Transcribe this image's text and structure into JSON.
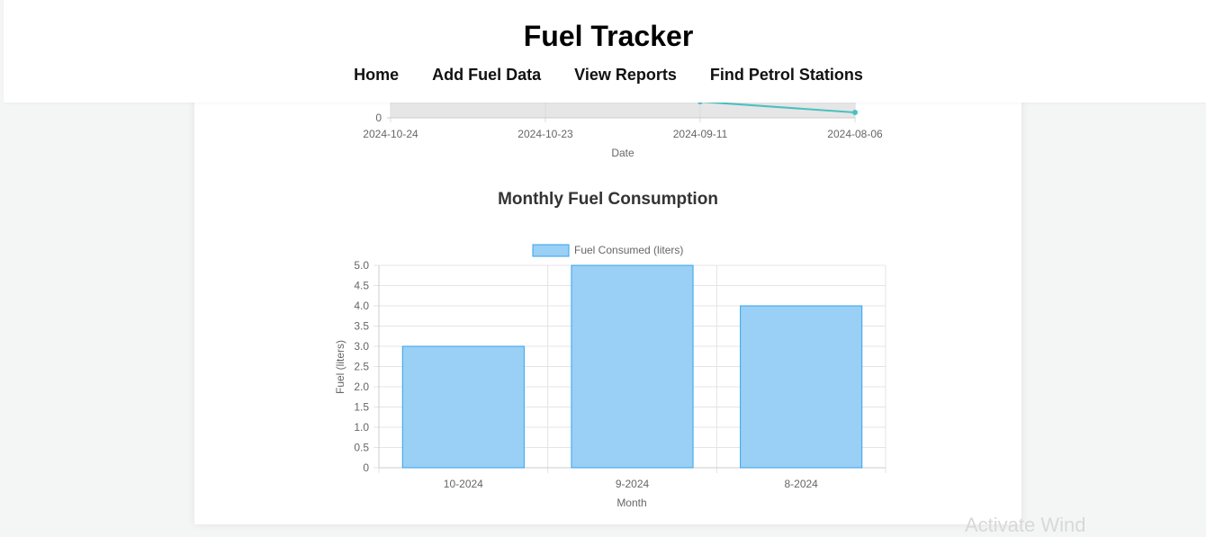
{
  "header": {
    "title": "Fuel Tracker",
    "nav": [
      {
        "label": "Home"
      },
      {
        "label": "Add Fuel Data"
      },
      {
        "label": "View Reports"
      },
      {
        "label": "Find Petrol Stations"
      }
    ]
  },
  "watermark": "Activate Wind",
  "chart_data": [
    {
      "type": "line",
      "partially_visible": true,
      "x": [
        "2024-10-24",
        "2024-10-23",
        "2024-09-11",
        "2024-08-06"
      ],
      "xlabel": "Date",
      "y_tick_visible": "0",
      "line_color": "#4bc0c0",
      "fill_color": "#e6e6e6"
    },
    {
      "type": "bar",
      "title": "Monthly Fuel Consumption",
      "categories": [
        "10-2024",
        "9-2024",
        "8-2024"
      ],
      "series": [
        {
          "name": "Fuel Consumed (liters)",
          "values": [
            3,
            5,
            4
          ]
        }
      ],
      "xlabel": "Month",
      "ylabel": "Fuel (liters)",
      "ylim": [
        0,
        5
      ],
      "yticks": [
        "0",
        "0.5",
        "1.0",
        "1.5",
        "2.0",
        "2.5",
        "3.0",
        "3.5",
        "4.0",
        "4.5",
        "5.0"
      ],
      "bar_fill": "#9ad0f5",
      "bar_border": "#36a2eb",
      "grid": true,
      "legend": "top"
    }
  ]
}
